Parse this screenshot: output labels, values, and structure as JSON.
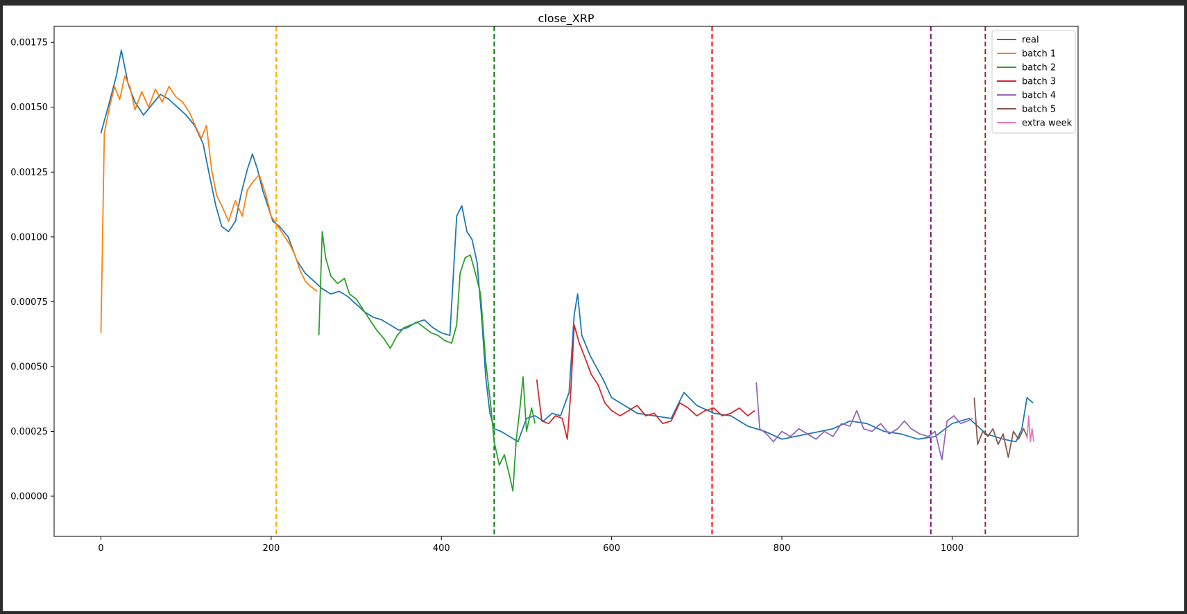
{
  "chart_data": {
    "type": "line",
    "title": "close_XRP",
    "xlabel": "",
    "ylabel": "",
    "xlim": [
      -55,
      1148
    ],
    "ylim": [
      -0.000155,
      0.001812
    ],
    "xticks": [
      0,
      200,
      400,
      600,
      800,
      1000
    ],
    "xtick_labels": [
      "0",
      "200",
      "400",
      "600",
      "800",
      "1000"
    ],
    "yticks": [
      0,
      0.00025,
      0.0005,
      0.00075,
      0.001,
      0.00125,
      0.0015,
      0.00175
    ],
    "ytick_labels": [
      "0.00000",
      "0.00025",
      "0.00050",
      "0.00075",
      "0.00100",
      "0.00125",
      "0.00150",
      "0.00175"
    ],
    "grid": false,
    "legend_position": "top-right",
    "series": [
      {
        "name": "real",
        "color": "#1f77b4",
        "points": [
          [
            0,
            0.0014
          ],
          [
            10,
            0.00152
          ],
          [
            18,
            0.00162
          ],
          [
            24,
            0.00172
          ],
          [
            32,
            0.00159
          ],
          [
            40,
            0.00152
          ],
          [
            50,
            0.00147
          ],
          [
            60,
            0.00151
          ],
          [
            70,
            0.00155
          ],
          [
            80,
            0.00153
          ],
          [
            90,
            0.0015
          ],
          [
            100,
            0.00147
          ],
          [
            110,
            0.00143
          ],
          [
            120,
            0.00136
          ],
          [
            128,
            0.00123
          ],
          [
            135,
            0.00112
          ],
          [
            142,
            0.00104
          ],
          [
            150,
            0.00102
          ],
          [
            158,
            0.00106
          ],
          [
            165,
            0.00117
          ],
          [
            172,
            0.00126
          ],
          [
            178,
            0.00132
          ],
          [
            184,
            0.00126
          ],
          [
            190,
            0.00118
          ],
          [
            196,
            0.00112
          ],
          [
            202,
            0.00106
          ],
          [
            210,
            0.00104
          ],
          [
            220,
            0.001
          ],
          [
            230,
            0.00091
          ],
          [
            240,
            0.00086
          ],
          [
            250,
            0.00083
          ],
          [
            260,
            0.0008
          ],
          [
            270,
            0.00078
          ],
          [
            280,
            0.00079
          ],
          [
            290,
            0.00077
          ],
          [
            300,
            0.00074
          ],
          [
            310,
            0.00071
          ],
          [
            320,
            0.00069
          ],
          [
            330,
            0.00068
          ],
          [
            340,
            0.00066
          ],
          [
            350,
            0.00064
          ],
          [
            360,
            0.00065
          ],
          [
            370,
            0.00067
          ],
          [
            380,
            0.00068
          ],
          [
            390,
            0.00065
          ],
          [
            400,
            0.00063
          ],
          [
            410,
            0.00062
          ],
          [
            418,
            0.00108
          ],
          [
            424,
            0.00112
          ],
          [
            430,
            0.00102
          ],
          [
            436,
            0.00099
          ],
          [
            442,
            0.0009
          ],
          [
            448,
            0.00066
          ],
          [
            452,
            0.00046
          ],
          [
            457,
            0.00032
          ],
          [
            462,
            0.00026
          ],
          [
            470,
            0.00025
          ],
          [
            480,
            0.00023
          ],
          [
            490,
            0.00021
          ],
          [
            500,
            0.0003
          ],
          [
            510,
            0.00031
          ],
          [
            520,
            0.00029
          ],
          [
            530,
            0.00032
          ],
          [
            540,
            0.00031
          ],
          [
            550,
            0.0004
          ],
          [
            556,
            0.0007
          ],
          [
            560,
            0.00078
          ],
          [
            565,
            0.00062
          ],
          [
            575,
            0.00054
          ],
          [
            590,
            0.00045
          ],
          [
            600,
            0.00038
          ],
          [
            615,
            0.00035
          ],
          [
            630,
            0.00032
          ],
          [
            650,
            0.00031
          ],
          [
            670,
            0.0003
          ],
          [
            685,
            0.0004
          ],
          [
            700,
            0.00035
          ],
          [
            720,
            0.00032
          ],
          [
            740,
            0.00031
          ],
          [
            760,
            0.00027
          ],
          [
            780,
            0.00025
          ],
          [
            800,
            0.00022
          ],
          [
            830,
            0.00024
          ],
          [
            860,
            0.00026
          ],
          [
            880,
            0.00029
          ],
          [
            900,
            0.00028
          ],
          [
            920,
            0.00025
          ],
          [
            940,
            0.00024
          ],
          [
            960,
            0.00022
          ],
          [
            980,
            0.00023
          ],
          [
            1000,
            0.00028
          ],
          [
            1020,
            0.0003
          ],
          [
            1040,
            0.00024
          ],
          [
            1060,
            0.00022
          ],
          [
            1075,
            0.00021
          ],
          [
            1082,
            0.00026
          ],
          [
            1088,
            0.00038
          ],
          [
            1095,
            0.00036
          ]
        ]
      },
      {
        "name": "batch 1",
        "color": "#ff7f0e",
        "points": [
          [
            0,
            0.00063
          ],
          [
            4,
            0.0014
          ],
          [
            10,
            0.0015
          ],
          [
            16,
            0.00158
          ],
          [
            22,
            0.00153
          ],
          [
            28,
            0.00162
          ],
          [
            34,
            0.00158
          ],
          [
            40,
            0.00149
          ],
          [
            48,
            0.00156
          ],
          [
            56,
            0.0015
          ],
          [
            64,
            0.00157
          ],
          [
            72,
            0.00152
          ],
          [
            80,
            0.00158
          ],
          [
            88,
            0.00154
          ],
          [
            96,
            0.00152
          ],
          [
            104,
            0.00148
          ],
          [
            112,
            0.00142
          ],
          [
            118,
            0.00138
          ],
          [
            124,
            0.00143
          ],
          [
            130,
            0.00126
          ],
          [
            136,
            0.00116
          ],
          [
            142,
            0.00112
          ],
          [
            150,
            0.00106
          ],
          [
            158,
            0.00114
          ],
          [
            166,
            0.00108
          ],
          [
            172,
            0.00118
          ],
          [
            178,
            0.00121
          ],
          [
            186,
            0.00124
          ],
          [
            194,
            0.00116
          ],
          [
            200,
            0.00108
          ],
          [
            208,
            0.00104
          ],
          [
            216,
            0.001
          ],
          [
            222,
            0.00097
          ],
          [
            228,
            0.00093
          ],
          [
            234,
            0.00087
          ],
          [
            240,
            0.00083
          ],
          [
            246,
            0.00081
          ],
          [
            254,
            0.00079
          ]
        ]
      },
      {
        "name": "batch 2",
        "color": "#2ca02c",
        "points": [
          [
            256,
            0.00062
          ],
          [
            260,
            0.00102
          ],
          [
            264,
            0.00092
          ],
          [
            270,
            0.00085
          ],
          [
            278,
            0.00082
          ],
          [
            286,
            0.00084
          ],
          [
            292,
            0.00078
          ],
          [
            300,
            0.00076
          ],
          [
            308,
            0.00072
          ],
          [
            316,
            0.00068
          ],
          [
            324,
            0.00064
          ],
          [
            332,
            0.00061
          ],
          [
            340,
            0.00057
          ],
          [
            348,
            0.00062
          ],
          [
            356,
            0.00065
          ],
          [
            364,
            0.00066
          ],
          [
            372,
            0.00067
          ],
          [
            380,
            0.00065
          ],
          [
            388,
            0.00063
          ],
          [
            396,
            0.00062
          ],
          [
            404,
            0.0006
          ],
          [
            412,
            0.00059
          ],
          [
            418,
            0.00066
          ],
          [
            422,
            0.00086
          ],
          [
            428,
            0.00092
          ],
          [
            434,
            0.00093
          ],
          [
            440,
            0.00086
          ],
          [
            446,
            0.00078
          ],
          [
            452,
            0.00052
          ],
          [
            458,
            0.00035
          ],
          [
            462,
            0.00021
          ],
          [
            468,
            0.00012
          ],
          [
            474,
            0.00016
          ],
          [
            480,
            8e-05
          ],
          [
            484,
            2e-05
          ],
          [
            488,
            0.00022
          ],
          [
            492,
            0.00033
          ],
          [
            496,
            0.00046
          ],
          [
            500,
            0.00025
          ],
          [
            506,
            0.00034
          ],
          [
            510,
            0.00028
          ]
        ]
      },
      {
        "name": "batch 3",
        "color": "#d62728",
        "points": [
          [
            512,
            0.00045
          ],
          [
            518,
            0.00029
          ],
          [
            526,
            0.00028
          ],
          [
            534,
            0.00031
          ],
          [
            542,
            0.0003
          ],
          [
            548,
            0.00022
          ],
          [
            552,
            0.0004
          ],
          [
            556,
            0.00066
          ],
          [
            562,
            0.00059
          ],
          [
            568,
            0.00054
          ],
          [
            576,
            0.00047
          ],
          [
            584,
            0.00043
          ],
          [
            592,
            0.00036
          ],
          [
            600,
            0.00033
          ],
          [
            610,
            0.00031
          ],
          [
            620,
            0.00033
          ],
          [
            630,
            0.00035
          ],
          [
            640,
            0.00031
          ],
          [
            650,
            0.00032
          ],
          [
            660,
            0.00028
          ],
          [
            670,
            0.00029
          ],
          [
            680,
            0.00036
          ],
          [
            690,
            0.00034
          ],
          [
            700,
            0.00031
          ],
          [
            710,
            0.00033
          ],
          [
            720,
            0.00034
          ],
          [
            730,
            0.00031
          ],
          [
            740,
            0.00032
          ],
          [
            750,
            0.00034
          ],
          [
            760,
            0.00031
          ],
          [
            768,
            0.00033
          ]
        ]
      },
      {
        "name": "batch 4",
        "color": "#9467bd",
        "points": [
          [
            770,
            0.00044
          ],
          [
            774,
            0.00026
          ],
          [
            782,
            0.00024
          ],
          [
            790,
            0.00021
          ],
          [
            800,
            0.00025
          ],
          [
            810,
            0.00023
          ],
          [
            820,
            0.00026
          ],
          [
            830,
            0.00024
          ],
          [
            840,
            0.00022
          ],
          [
            850,
            0.00025
          ],
          [
            860,
            0.00023
          ],
          [
            870,
            0.00028
          ],
          [
            880,
            0.00027
          ],
          [
            888,
            0.00033
          ],
          [
            896,
            0.00026
          ],
          [
            906,
            0.00025
          ],
          [
            916,
            0.00028
          ],
          [
            926,
            0.00024
          ],
          [
            936,
            0.00026
          ],
          [
            944,
            0.00029
          ],
          [
            952,
            0.00026
          ],
          [
            962,
            0.00024
          ],
          [
            972,
            0.00023
          ],
          [
            980,
            0.00025
          ],
          [
            988,
            0.00014
          ],
          [
            994,
            0.00029
          ],
          [
            1002,
            0.00031
          ],
          [
            1010,
            0.00028
          ],
          [
            1018,
            0.00029
          ],
          [
            1024,
            0.0003
          ]
        ]
      },
      {
        "name": "batch 5",
        "color": "#8c564b",
        "points": [
          [
            1026,
            0.00038
          ],
          [
            1030,
            0.0002
          ],
          [
            1036,
            0.00025
          ],
          [
            1042,
            0.00023
          ],
          [
            1048,
            0.00026
          ],
          [
            1054,
            0.0002
          ],
          [
            1060,
            0.00024
          ],
          [
            1066,
            0.00015
          ],
          [
            1072,
            0.00025
          ],
          [
            1078,
            0.00022
          ],
          [
            1084,
            0.00026
          ],
          [
            1088,
            0.00023
          ]
        ]
      },
      {
        "name": "extra week",
        "color": "#e377c2",
        "points": [
          [
            1088,
            0.00022
          ],
          [
            1090,
            0.00031
          ],
          [
            1092,
            0.00021
          ],
          [
            1094,
            0.00026
          ],
          [
            1096,
            0.00021
          ]
        ]
      }
    ],
    "vlines": [
      {
        "x": 206,
        "color": "orange",
        "style": "dashed"
      },
      {
        "x": 462,
        "color": "green",
        "style": "dashed"
      },
      {
        "x": 718,
        "color": "red",
        "style": "dashed"
      },
      {
        "x": 975,
        "color": "purple",
        "style": "dashed"
      },
      {
        "x": 1039,
        "color": "brown",
        "style": "dashed"
      }
    ]
  }
}
